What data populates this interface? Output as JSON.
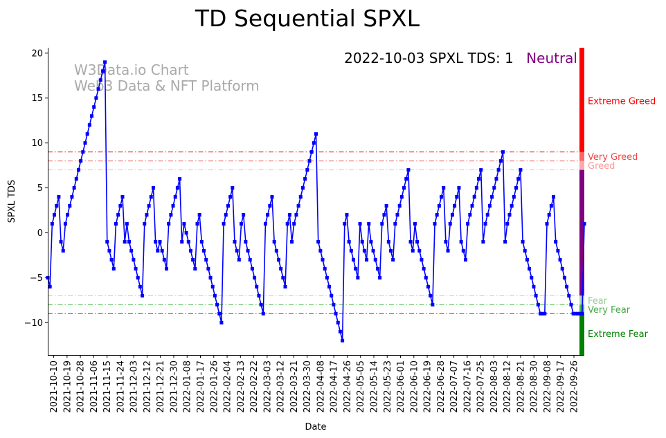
{
  "chart_data": {
    "type": "line",
    "title": "TD Sequential SPXL",
    "xlabel": "Date",
    "ylabel": "SPXL TDS",
    "ylim": [
      -13.6,
      20.6
    ],
    "yticks": [
      -10,
      -5,
      0,
      5,
      10,
      15,
      20
    ],
    "x_start": "2021-10-06",
    "x_end": "2022-10-03",
    "xticks": [
      "2021-10-10",
      "2021-10-19",
      "2021-10-28",
      "2021-11-06",
      "2021-11-15",
      "2021-11-24",
      "2021-12-03",
      "2021-12-12",
      "2021-12-21",
      "2021-12-30",
      "2022-01-08",
      "2022-01-17",
      "2022-01-26",
      "2022-02-04",
      "2022-02-13",
      "2022-02-22",
      "2022-03-03",
      "2022-03-12",
      "2022-03-21",
      "2022-03-30",
      "2022-04-08",
      "2022-04-17",
      "2022-04-26",
      "2022-05-05",
      "2022-05-14",
      "2022-05-23",
      "2022-06-01",
      "2022-06-10",
      "2022-06-19",
      "2022-06-28",
      "2022-07-07",
      "2022-07-16",
      "2022-07-25",
      "2022-08-03",
      "2022-08-12",
      "2022-08-21",
      "2022-08-30",
      "2022-09-08",
      "2022-09-17",
      "2022-09-26"
    ],
    "watermark": [
      "W3Data.io Chart",
      "Web3 Data & NFT Platform"
    ],
    "status_label": "2022-10-03 SPXL TDS: 1",
    "status_word": "Neutral",
    "status_color": "#800080",
    "line_color": "#0000ff",
    "series": [
      {
        "name": "SPXL TDS",
        "values": [
          -5,
          -6,
          1,
          2,
          3,
          4,
          -1,
          -2,
          1,
          2,
          3,
          4,
          5,
          6,
          7,
          8,
          9,
          10,
          11,
          12,
          13,
          14,
          15,
          16,
          17,
          18,
          19,
          -1,
          -2,
          -3,
          -4,
          1,
          2,
          3,
          4,
          -1,
          1,
          -1,
          -2,
          -3,
          -4,
          -5,
          -6,
          -7,
          1,
          2,
          3,
          4,
          5,
          -1,
          -2,
          -1,
          -2,
          -3,
          -4,
          1,
          2,
          3,
          4,
          5,
          6,
          -1,
          1,
          0,
          -1,
          -2,
          -3,
          -4,
          1,
          2,
          -1,
          -2,
          -3,
          -4,
          -5,
          -6,
          -7,
          -8,
          -9,
          -10,
          1,
          2,
          3,
          4,
          5,
          -1,
          -2,
          -3,
          1,
          2,
          -1,
          -2,
          -3,
          -4,
          -5,
          -6,
          -7,
          -8,
          -9,
          1,
          2,
          3,
          4,
          -1,
          -2,
          -3,
          -4,
          -5,
          -6,
          1,
          2,
          -1,
          1,
          2,
          3,
          4,
          5,
          6,
          7,
          8,
          9,
          10,
          11,
          -1,
          -2,
          -3,
          -4,
          -5,
          -6,
          -7,
          -8,
          -9,
          -10,
          -11,
          -12,
          1,
          2,
          -1,
          -2,
          -3,
          -4,
          -5,
          1,
          -1,
          -2,
          -3,
          1,
          -1,
          -2,
          -3,
          -4,
          -5,
          1,
          2,
          3,
          -1,
          -2,
          -3,
          1,
          2,
          3,
          4,
          5,
          6,
          7,
          -1,
          -2,
          1,
          -1,
          -2,
          -3,
          -4,
          -5,
          -6,
          -7,
          -8,
          1,
          2,
          3,
          4,
          5,
          -1,
          -2,
          1,
          2,
          3,
          4,
          5,
          -1,
          -2,
          -3,
          1,
          2,
          3,
          4,
          5,
          6,
          7,
          -1,
          1,
          2,
          3,
          4,
          5,
          6,
          7,
          8,
          9,
          -1,
          1,
          2,
          3,
          4,
          5,
          6,
          7,
          -1,
          -2,
          -3,
          -4,
          -5,
          -6,
          -7,
          -8,
          -9,
          -9,
          -9,
          1,
          2,
          3,
          4,
          -1,
          -2,
          -3,
          -4,
          -5,
          -6,
          -7,
          -8,
          -9,
          -9,
          -9,
          -9,
          -9,
          1
        ]
      }
    ],
    "thresholds": [
      {
        "name": "Very Greed",
        "value": 9,
        "color": "#dd0000"
      },
      {
        "name": "Greed",
        "value": 8,
        "color": "#ee5555"
      },
      {
        "name": "Greed",
        "value": 7,
        "color": "#ffaaaa"
      },
      {
        "name": "Fear",
        "value": -7,
        "color": "#aaddaa"
      },
      {
        "name": "Very Fear",
        "value": -8,
        "color": "#44bb44"
      },
      {
        "name": "Extreme Fear",
        "value": -9,
        "color": "#008800"
      }
    ],
    "zones": [
      {
        "label": "Extreme Greed",
        "from": 9,
        "to": 20.6,
        "color": "#ff0000",
        "label_color": "#ff0000",
        "label_value": 14.7
      },
      {
        "label": "Very Greed",
        "from": 8,
        "to": 9,
        "color": "#ff6666",
        "label_color": "#ee4444",
        "label_value": 8.5
      },
      {
        "label": "Greed",
        "from": 7,
        "to": 8,
        "color": "#ffaaaa",
        "label_color": "#ff9999",
        "label_value": 7.5
      },
      {
        "label": "",
        "from": -7,
        "to": 7,
        "color": "#800080",
        "label_color": "#800080",
        "label_value": 0
      },
      {
        "label": "Fear",
        "from": -8,
        "to": -7,
        "color": "#aaddaa",
        "label_color": "#99cc99",
        "label_value": -7.5
      },
      {
        "label": "Very Fear",
        "from": -9,
        "to": -8,
        "color": "#44bb44",
        "label_color": "#44aa44",
        "label_value": -8.5
      },
      {
        "label": "Extreme Fear",
        "from": -13.6,
        "to": -9,
        "color": "#008000",
        "label_color": "#008000",
        "label_value": -11.2
      }
    ]
  }
}
